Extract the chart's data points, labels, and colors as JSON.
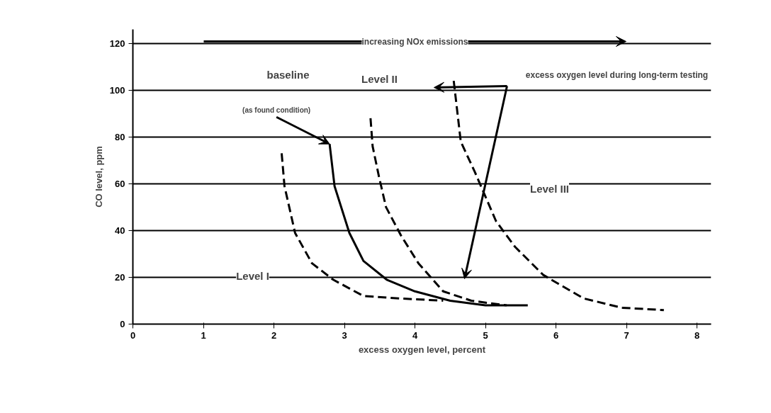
{
  "chart_data": {
    "type": "line",
    "xlabel": "excess oxygen level, percent",
    "ylabel": "CO level, ppm",
    "xlim": [
      0,
      8.2
    ],
    "ylim": [
      0,
      126
    ],
    "xticks": [
      0,
      1,
      2,
      3,
      4,
      5,
      6,
      7,
      8
    ],
    "yticks": [
      0,
      20,
      40,
      60,
      80,
      100,
      120
    ],
    "grid": "y",
    "marker": "none",
    "series": [
      {
        "color": "#000000",
        "line_style": "solid",
        "x": [
          2.79,
          2.86,
          3.07,
          3.27,
          3.6,
          4.0,
          4.5,
          5.0,
          5.6
        ],
        "values": [
          77,
          59,
          39,
          27,
          19,
          14,
          10,
          8,
          8
        ]
      },
      {
        "color": "#000000",
        "line_style": "dashed",
        "x": [
          2.11,
          2.15,
          2.3,
          2.54,
          2.84,
          3.27,
          3.77,
          4.4
        ],
        "values": [
          73,
          59,
          39,
          26,
          19,
          12,
          11,
          10
        ]
      },
      {
        "color": "#000000",
        "line_style": "dashed",
        "x": [
          3.37,
          3.4,
          3.49,
          3.59,
          3.8,
          4.05,
          4.4,
          4.8,
          5.3
        ],
        "values": [
          88,
          76,
          63,
          50,
          38,
          26,
          14,
          10,
          8
        ]
      },
      {
        "color": "#000000",
        "line_style": "dashed",
        "x": [
          4.55,
          4.65,
          4.85,
          5.15,
          5.42,
          5.82,
          6.39,
          6.93,
          7.53
        ],
        "values": [
          104,
          78,
          65,
          44,
          33,
          21,
          11,
          7,
          6
        ]
      }
    ],
    "annotations": [
      "increasing NOx emissions",
      "baseline",
      {
        "text": "(as found condition)",
        "x": 2.79,
        "y": 77
      },
      "Level I",
      "Level II",
      "Level III",
      "excess oxygen level during long-term testing"
    ]
  }
}
